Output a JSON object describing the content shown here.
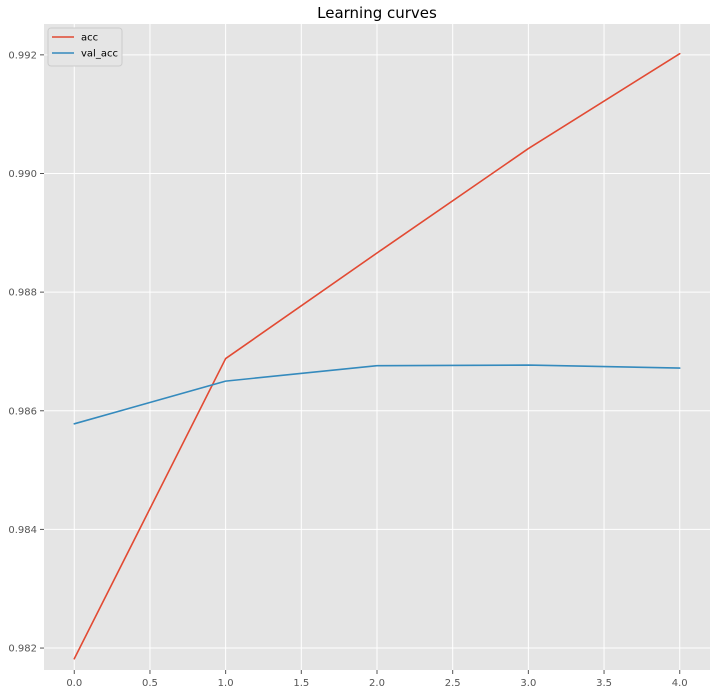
{
  "chart_data": {
    "type": "line",
    "title": "Learning curves",
    "xlabel": "",
    "ylabel": "",
    "x": [
      0,
      1,
      2,
      3,
      4
    ],
    "series": [
      {
        "name": "acc",
        "values": [
          0.98182,
          0.98688,
          0.98866,
          0.99042,
          0.99202
        ]
      },
      {
        "name": "val_acc",
        "values": [
          0.98578,
          0.9865,
          0.98676,
          0.98677,
          0.98672
        ]
      }
    ],
    "x_ticks": [
      "0.0",
      "0.5",
      "1.0",
      "1.5",
      "2.0",
      "2.5",
      "3.0",
      "3.5",
      "4.0"
    ],
    "y_ticks": [
      "0.982",
      "0.984",
      "0.986",
      "0.988",
      "0.990",
      "0.992"
    ],
    "xlim": [
      -0.2,
      4.2
    ],
    "ylim": [
      0.98163,
      0.99252
    ],
    "grid": true,
    "legend_position": "top-left",
    "colors": {
      "background": "#e5e5e5",
      "grid": "#ffffff",
      "acc": "#e24a33",
      "val_acc": "#348abd"
    }
  }
}
